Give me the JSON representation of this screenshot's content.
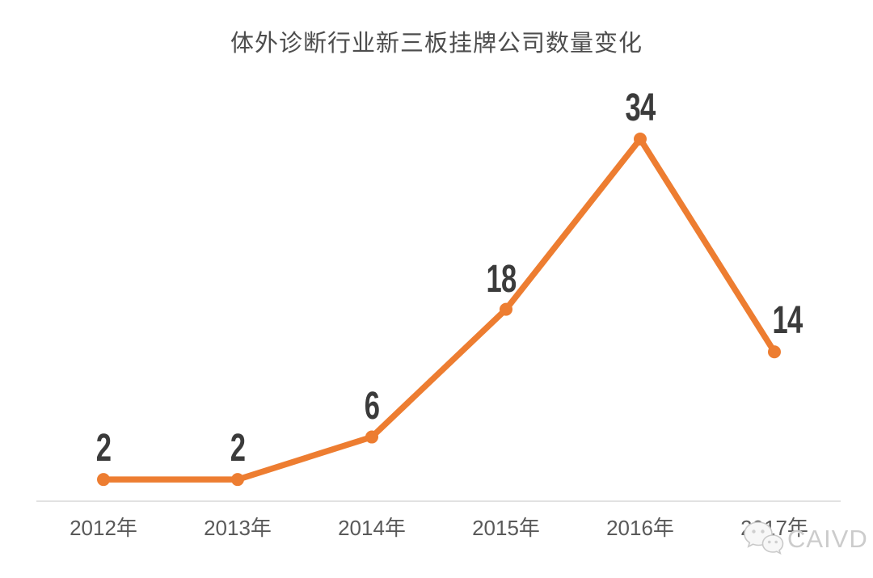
{
  "chart_data": {
    "type": "line",
    "title": "体外诊断行业新三板挂牌公司数量变化",
    "categories": [
      "2012年",
      "2013年",
      "2014年",
      "2015年",
      "2016年",
      "2017年"
    ],
    "values": [
      2,
      2,
      6,
      18,
      34,
      14
    ],
    "xlabel": "",
    "ylabel": "",
    "ylim": [
      0,
      47
    ],
    "grid": false,
    "legend": "none",
    "markers": true,
    "label_placement": [
      "above",
      "above",
      "above",
      "above-left",
      "above",
      "right"
    ],
    "line_color": "#ED7D31",
    "marker_color": "#ED7D31",
    "data_label_color": "#3B3B3B",
    "title_color": "#4D4D4D",
    "axis_label_color": "#595959",
    "axis_line_color": "#D9D9D9"
  },
  "watermark": {
    "icon": "wechat-icon",
    "text": "CAIVD"
  }
}
